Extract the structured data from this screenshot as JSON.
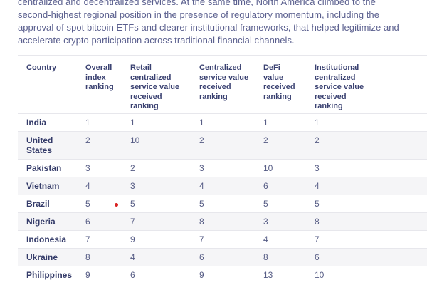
{
  "paragraph": {
    "lines": [
      "centralized and decentralized services. At the same time, North America climbed to the",
      "second-highest regional position in the presence of regulatory momentum, including the",
      "approval of spot bitcoin ETFs and clearer institutional frameworks, that helped legitimize and",
      "accelerate crypto participation across traditional financial channels."
    ]
  },
  "table": {
    "columns": [
      {
        "label": [
          "Country"
        ]
      },
      {
        "label": [
          "Overall",
          "index",
          "ranking"
        ]
      },
      {
        "label": [
          "Retail",
          "centralized",
          "service value",
          "received",
          "ranking"
        ]
      },
      {
        "label": [
          "Centralized",
          "service value",
          "received",
          "ranking"
        ]
      },
      {
        "label": [
          "DeFi",
          "value",
          "received",
          "ranking"
        ]
      },
      {
        "label": [
          "Institutional",
          "centralized",
          "service value",
          "received",
          "ranking"
        ]
      }
    ],
    "rows": [
      {
        "country": "India",
        "values": [
          "1",
          "1",
          "1",
          "1",
          "1"
        ]
      },
      {
        "country": "United States",
        "values": [
          "2",
          "10",
          "2",
          "2",
          "2"
        ]
      },
      {
        "country": "Pakistan",
        "values": [
          "3",
          "2",
          "3",
          "10",
          "3"
        ]
      },
      {
        "country": "Vietnam",
        "values": [
          "4",
          "3",
          "4",
          "6",
          "4"
        ]
      },
      {
        "country": "Brazil",
        "values": [
          "5",
          "5",
          "5",
          "5",
          "5"
        ]
      },
      {
        "country": "Nigeria",
        "values": [
          "6",
          "7",
          "8",
          "3",
          "8"
        ]
      },
      {
        "country": "Indonesia",
        "values": [
          "7",
          "9",
          "7",
          "4",
          "7"
        ]
      },
      {
        "country": "Ukraine",
        "values": [
          "8",
          "4",
          "6",
          "8",
          "6"
        ]
      },
      {
        "country": "Philippines",
        "values": [
          "9",
          "6",
          "9",
          "13",
          "10"
        ]
      }
    ]
  },
  "colors": {
    "paragraph_text": "#5a5f8e",
    "header_text": "#3a4171",
    "country_text": "#343b69",
    "value_text": "#565c85",
    "row_alt_background": "#f5f5f7",
    "divider": "#e7e7ec",
    "click_marker": "#d92222"
  }
}
